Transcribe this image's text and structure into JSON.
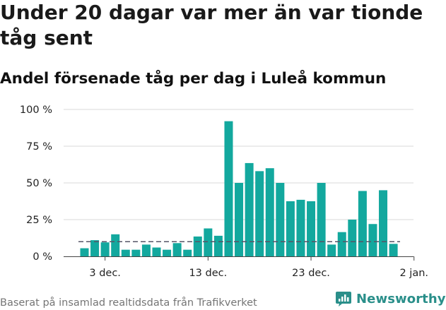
{
  "header": {
    "title": "Under 20 dagar var mer än var tionde tåg sent",
    "subtitle": "Andel försenade tåg per dag i Luleå kommun"
  },
  "footer": {
    "source": "Baserat på insamlad realtidsdata från Trafikverket",
    "brand": "Newsworthy"
  },
  "colors": {
    "bar": "#13a89e",
    "reference_line": "#555566",
    "grid": "#d9d9d9",
    "brand": "#2a8f8a"
  },
  "chart_data": {
    "type": "bar",
    "title": "Under 20 dagar var mer än var tionde tåg sent",
    "subtitle": "Andel försenade tåg per dag i Luleå kommun",
    "xlabel": "",
    "ylabel": "",
    "ylim": [
      0,
      100
    ],
    "y_unit": "%",
    "y_ticks": [
      0,
      25,
      50,
      75,
      100
    ],
    "y_tick_labels": [
      "0 %",
      "25 %",
      "50 %",
      "75 %",
      "100 %"
    ],
    "x_tick_labels": [
      "3 dec.",
      "13 dec.",
      "23 dec.",
      "2 jan."
    ],
    "x_tick_days": [
      "2023-12-03",
      "2023-12-13",
      "2023-12-23",
      "2024-01-02"
    ],
    "x": [
      "2023-12-01",
      "2023-12-02",
      "2023-12-03",
      "2023-12-04",
      "2023-12-05",
      "2023-12-06",
      "2023-12-07",
      "2023-12-08",
      "2023-12-09",
      "2023-12-10",
      "2023-12-11",
      "2023-12-12",
      "2023-12-13",
      "2023-12-14",
      "2023-12-15",
      "2023-12-16",
      "2023-12-17",
      "2023-12-18",
      "2023-12-19",
      "2023-12-20",
      "2023-12-21",
      "2023-12-22",
      "2023-12-23",
      "2023-12-24",
      "2023-12-25",
      "2023-12-26",
      "2023-12-27",
      "2023-12-28",
      "2023-12-29",
      "2023-12-30",
      "2023-12-31"
    ],
    "values": [
      5.5,
      11,
      9.5,
      15,
      4.5,
      4.5,
      8,
      6,
      4.5,
      9,
      4.5,
      13.5,
      19,
      14,
      92,
      50,
      63.5,
      58,
      60,
      50,
      37.5,
      38.5,
      37.5,
      50,
      8,
      16.5,
      25,
      44.5,
      22,
      45,
      8.5
    ],
    "reference_line": {
      "value": 10,
      "style": "dashed"
    },
    "grid": true,
    "legend": "none"
  }
}
